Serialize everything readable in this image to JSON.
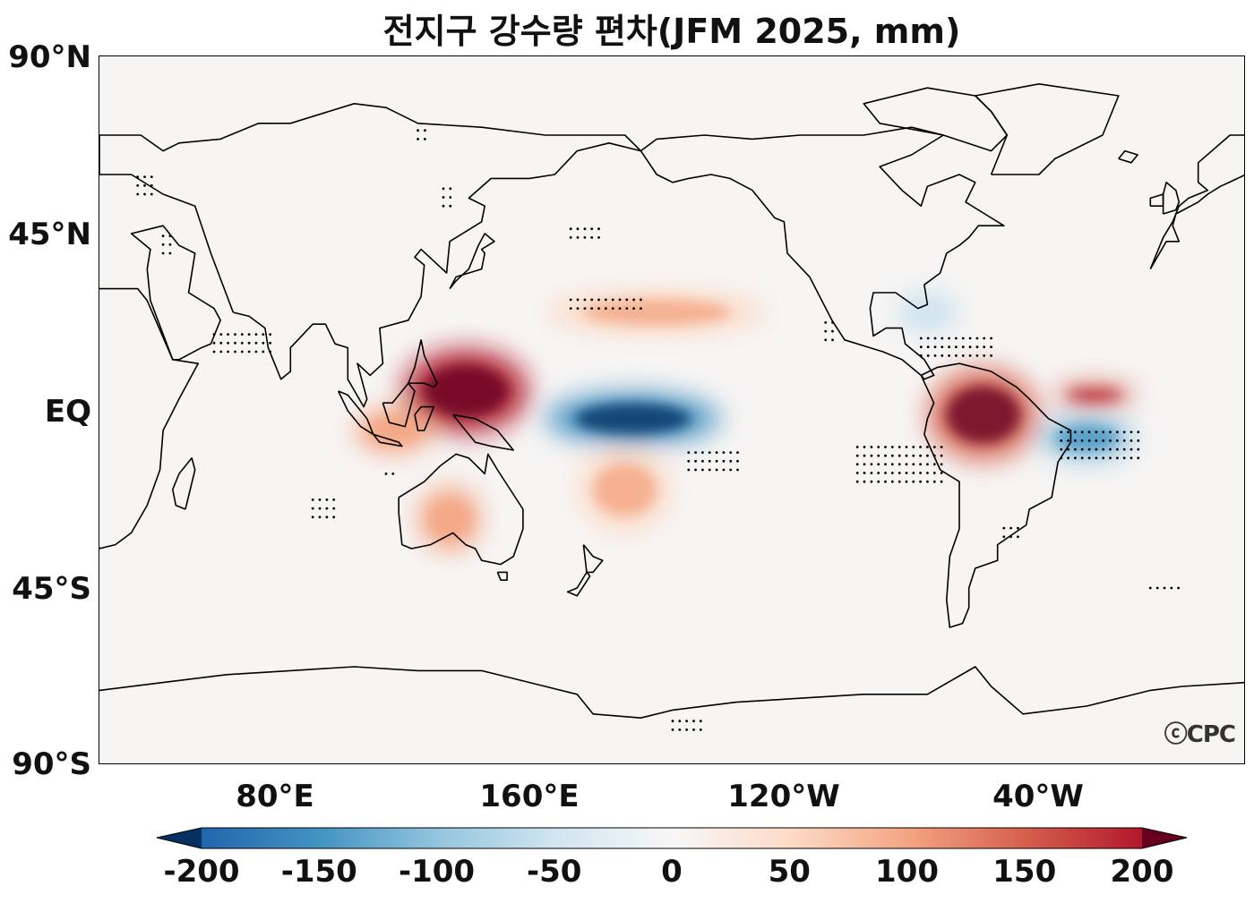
{
  "title": "전지구 강수량 편차(JFM 2025, mm)",
  "watermark": "ⓒCPC",
  "axes": {
    "lat_labels": [
      "90°N",
      "45°N",
      "EQ",
      "45°S",
      "90°S"
    ],
    "lon_labels": [
      "80°E",
      "160°E",
      "120°W",
      "40°W"
    ]
  },
  "colorbar": {
    "colormap": "RdBu_r",
    "range": [
      -200,
      200
    ],
    "extend": "both",
    "ticks": [
      "-200",
      "-150",
      "-100",
      "-50",
      "0",
      "50",
      "100",
      "150",
      "200"
    ],
    "colors": [
      "#053061",
      "#2166ac",
      "#4393c3",
      "#92c5de",
      "#d1e5f0",
      "#f7f7f7",
      "#fddbc7",
      "#f4a582",
      "#d6604d",
      "#b2182b",
      "#67001f"
    ]
  },
  "chart_data": {
    "type": "heatmap",
    "title": "전지구 강수량 편차(JFM 2025, mm)",
    "variable": "precipitation anomaly",
    "period": "JFM 2025",
    "units": "mm",
    "projection": "PlateCarree, central longitude 180",
    "lon_range": [
      20,
      380
    ],
    "lat_range": [
      -90,
      90
    ],
    "features": [
      {
        "region": "central equatorial Pacific",
        "lon": [
          160,
          215
        ],
        "lat": [
          -8,
          4
        ],
        "anomaly": -200
      },
      {
        "region": "western Pacific / Philippines / Indonesia",
        "lon": [
          115,
          155
        ],
        "lat": [
          -5,
          15
        ],
        "anomaly": 200
      },
      {
        "region": "northern South America / Amazon",
        "lon": [
          280,
          315
        ],
        "lat": [
          -12,
          10
        ],
        "anomaly": 180
      },
      {
        "region": "tropical Atlantic ITCZ",
        "lon": [
          320,
          345
        ],
        "lat": [
          2,
          6
        ],
        "anomaly": 170
      },
      {
        "region": "northeast Brazil / equatorial Atlantic",
        "lon": [
          315,
          345
        ],
        "lat": [
          -12,
          -2
        ],
        "anomaly": -110
      },
      {
        "region": "south Pacific convergence zone",
        "lon": [
          170,
          200
        ],
        "lat": [
          -30,
          -10
        ],
        "anomaly": 80
      },
      {
        "region": "northwest Australia / Indian Ocean",
        "lon": [
          120,
          140
        ],
        "lat": [
          -35,
          -20
        ],
        "anomaly": 90
      },
      {
        "region": "north Pacific subtropics",
        "lon": [
          160,
          230
        ],
        "lat": [
          20,
          30
        ],
        "anomaly": 60
      },
      {
        "region": "east equatorial Indian Ocean",
        "lon": [
          100,
          125
        ],
        "lat": [
          -10,
          0
        ],
        "anomaly": 90
      },
      {
        "region": "Caribbean / Gulf of Mexico",
        "lon": [
          270,
          290
        ],
        "lat": [
          20,
          30
        ],
        "anomaly": -50
      }
    ]
  }
}
